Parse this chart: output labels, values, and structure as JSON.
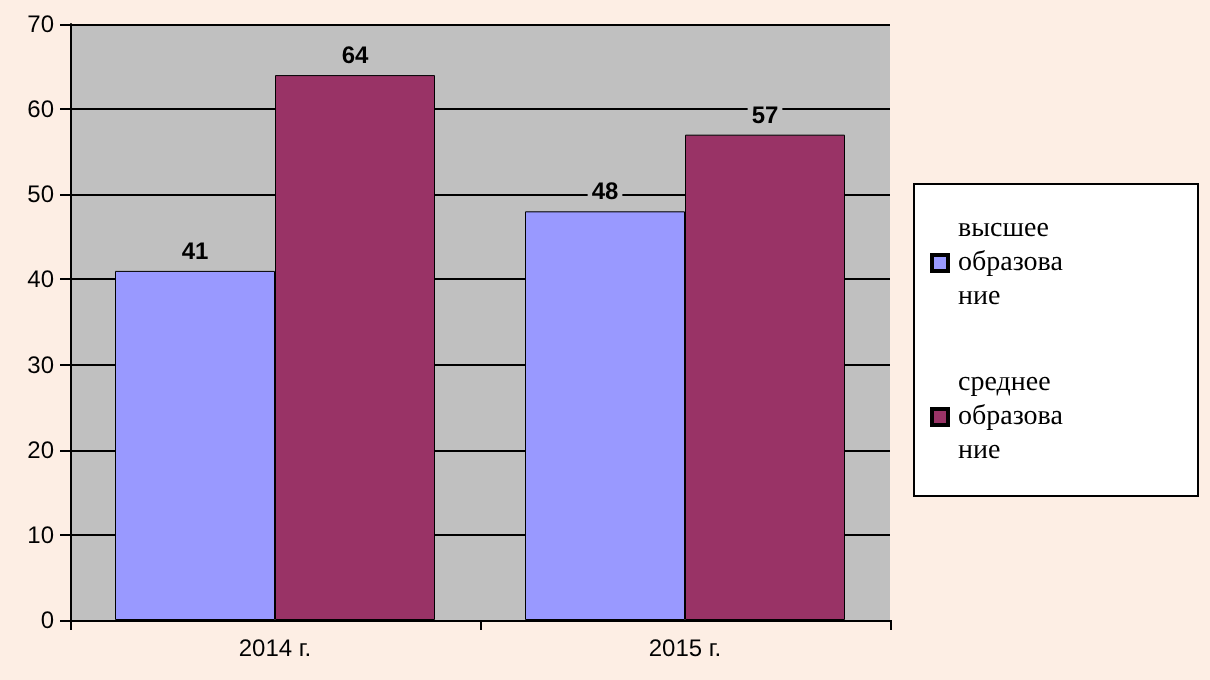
{
  "chart_data": {
    "type": "bar",
    "categories": [
      "2014 г.",
      "2015 г."
    ],
    "series": [
      {
        "name": "высшее образование",
        "color": "#9999ff",
        "values": [
          41,
          48
        ]
      },
      {
        "name": "среднее образование",
        "color": "#993366",
        "values": [
          64,
          57
        ]
      }
    ],
    "ylim": [
      0,
      70
    ],
    "yticks": [
      0,
      10,
      20,
      30,
      40,
      50,
      60,
      70
    ],
    "grid": "y",
    "legend": "right",
    "data_labels": true
  }
}
